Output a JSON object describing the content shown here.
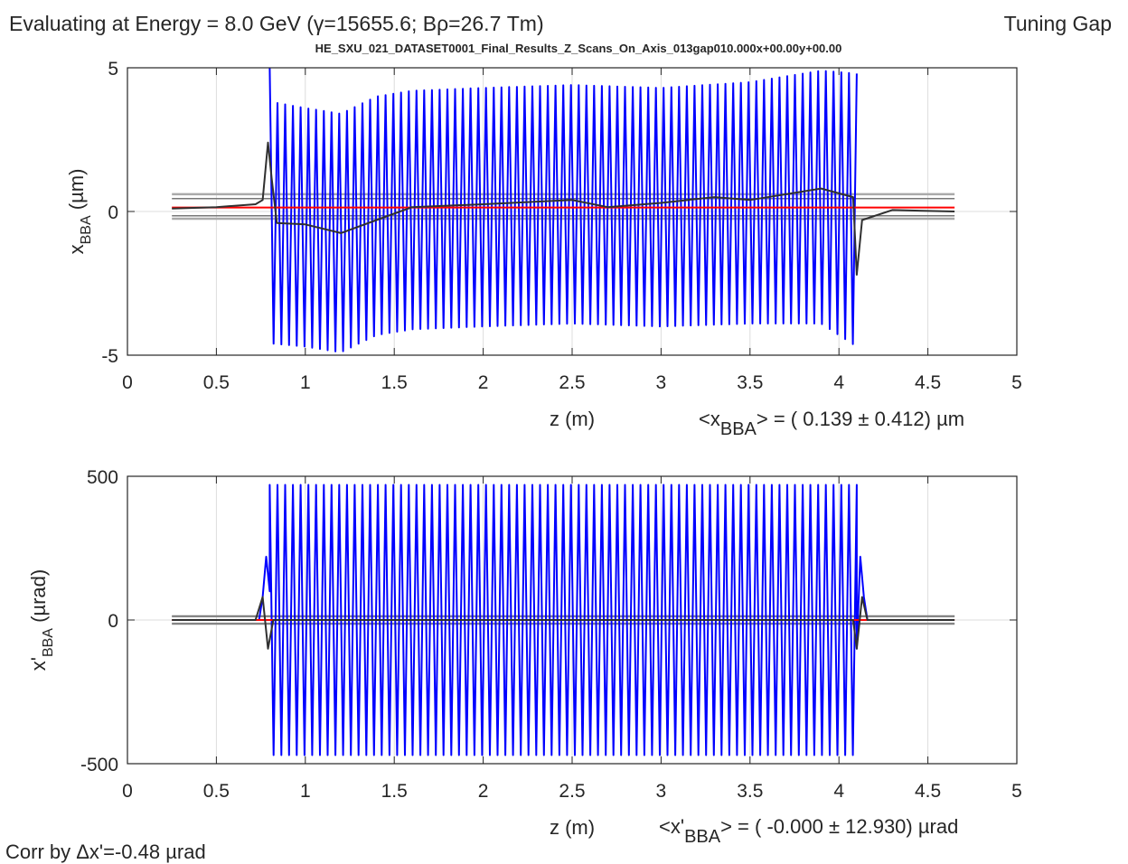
{
  "figure": {
    "energy_title": "Evaluating at Energy =  8.0 GeV (γ=15655.6; Bρ=26.7 Tm)",
    "mode_label": "Tuning Gap",
    "dataset_name": "HE_SXU_021_DATASET0001_Final_Results_Z_Scans_On_Axis_013gap010.000x+00.00y+00.00",
    "correction_note": "Corr by Δx'=-0.48 µrad"
  },
  "colors": {
    "oscillation": "#0000ff",
    "average": "#303030",
    "mean_line": "#ff0000",
    "sigma_band": "#aaaaaa"
  },
  "chart_data": [
    {
      "type": "line",
      "xlabel": "z (m)",
      "ylabel_main": "x",
      "ylabel_sub": "BBA",
      "ylabel_unit": " (µm)",
      "xlim": [
        0,
        5
      ],
      "ylim": [
        -5,
        5
      ],
      "xticks": [
        0,
        0.5,
        1,
        1.5,
        2,
        2.5,
        3,
        3.5,
        4,
        4.5,
        5
      ],
      "xtick_labels": [
        "0",
        "0.5",
        "1",
        "1.5",
        "2",
        "2.5",
        "3",
        "3.5",
        "4",
        "4.5",
        "5"
      ],
      "yticks": [
        -5,
        0,
        5
      ],
      "ytick_labels": [
        "-5",
        "0",
        "5"
      ],
      "grid": true,
      "stat_prefix": "<x",
      "stat_sub": "BBA",
      "stat_suffix": "> = (   0.139 ± 0.412) µm",
      "mean": 0.139,
      "sigma": 0.412,
      "band_inner": [
        -0.15,
        0.45
      ],
      "band_outer": [
        -0.25,
        0.6
      ],
      "line_range": [
        0.25,
        4.65
      ],
      "oscillation": {
        "start": 0.8,
        "end": 4.1,
        "period": 0.0434,
        "upper_env": [
          [
            0.8,
            5.0
          ],
          [
            0.82,
            3.8
          ],
          [
            1.0,
            3.6
          ],
          [
            1.2,
            3.4
          ],
          [
            1.4,
            4.0
          ],
          [
            1.6,
            4.2
          ],
          [
            2.0,
            4.3
          ],
          [
            2.5,
            4.4
          ],
          [
            3.0,
            4.3
          ],
          [
            3.5,
            4.5
          ],
          [
            3.9,
            4.9
          ],
          [
            4.1,
            4.8
          ]
        ],
        "lower_env": [
          [
            0.8,
            -2.0
          ],
          [
            0.82,
            -4.6
          ],
          [
            1.0,
            -4.7
          ],
          [
            1.2,
            -4.9
          ],
          [
            1.4,
            -4.3
          ],
          [
            1.6,
            -4.1
          ],
          [
            2.0,
            -4.0
          ],
          [
            2.5,
            -3.9
          ],
          [
            3.0,
            -4.0
          ],
          [
            3.5,
            -3.9
          ],
          [
            3.9,
            -3.9
          ],
          [
            4.1,
            -4.7
          ]
        ]
      },
      "average": [
        [
          0.25,
          0.1
        ],
        [
          0.5,
          0.15
        ],
        [
          0.72,
          0.25
        ],
        [
          0.76,
          0.4
        ],
        [
          0.79,
          2.4
        ],
        [
          0.81,
          1.2
        ],
        [
          0.84,
          -0.4
        ],
        [
          1.0,
          -0.45
        ],
        [
          1.2,
          -0.75
        ],
        [
          1.4,
          -0.3
        ],
        [
          1.6,
          0.15
        ],
        [
          2.0,
          0.25
        ],
        [
          2.5,
          0.4
        ],
        [
          2.7,
          0.15
        ],
        [
          3.0,
          0.3
        ],
        [
          3.3,
          0.5
        ],
        [
          3.5,
          0.4
        ],
        [
          3.9,
          0.8
        ],
        [
          4.08,
          0.5
        ],
        [
          4.1,
          -2.2
        ],
        [
          4.13,
          -0.3
        ],
        [
          4.3,
          0.05
        ],
        [
          4.65,
          0.0
        ]
      ]
    },
    {
      "type": "line",
      "xlabel": "z (m)",
      "ylabel_main": "x'",
      "ylabel_sub": "BBA",
      "ylabel_unit": " (µrad)",
      "xlim": [
        0,
        5
      ],
      "ylim": [
        -500,
        500
      ],
      "xticks": [
        0,
        0.5,
        1,
        1.5,
        2,
        2.5,
        3,
        3.5,
        4,
        4.5,
        5
      ],
      "xtick_labels": [
        "0",
        "0.5",
        "1",
        "1.5",
        "2",
        "2.5",
        "3",
        "3.5",
        "4",
        "4.5",
        "5"
      ],
      "yticks": [
        -500,
        0,
        500
      ],
      "ytick_labels": [
        "-500",
        "0",
        "500"
      ],
      "grid": true,
      "stat_prefix": "<x'",
      "stat_sub": "BBA",
      "stat_suffix": "> = ( -0.000 ± 12.930) µrad",
      "mean": 0.0,
      "sigma": 12.93,
      "band_inner": [
        -12.93,
        12.93
      ],
      "band_outer": [
        -12.93,
        12.93
      ],
      "line_range": [
        0.25,
        4.65
      ],
      "oscillation": {
        "start": 0.8,
        "end": 4.1,
        "period": 0.0434,
        "upper_env": [
          [
            0.8,
            470
          ],
          [
            4.1,
            470
          ]
        ],
        "lower_env": [
          [
            0.8,
            -470
          ],
          [
            4.1,
            -470
          ]
        ],
        "lead_in": [
          [
            0.74,
            0
          ],
          [
            0.76,
            80
          ],
          [
            0.78,
            220
          ],
          [
            0.8,
            100
          ]
        ],
        "lead_out": [
          [
            4.1,
            -100
          ],
          [
            4.12,
            220
          ],
          [
            4.14,
            80
          ],
          [
            4.16,
            0
          ]
        ]
      },
      "average": [
        [
          0.25,
          0
        ],
        [
          0.72,
          0
        ],
        [
          0.76,
          80
        ],
        [
          0.79,
          -100
        ],
        [
          0.82,
          0
        ],
        [
          4.08,
          0
        ],
        [
          4.1,
          -100
        ],
        [
          4.13,
          80
        ],
        [
          4.16,
          0
        ],
        [
          4.65,
          0
        ]
      ]
    }
  ]
}
